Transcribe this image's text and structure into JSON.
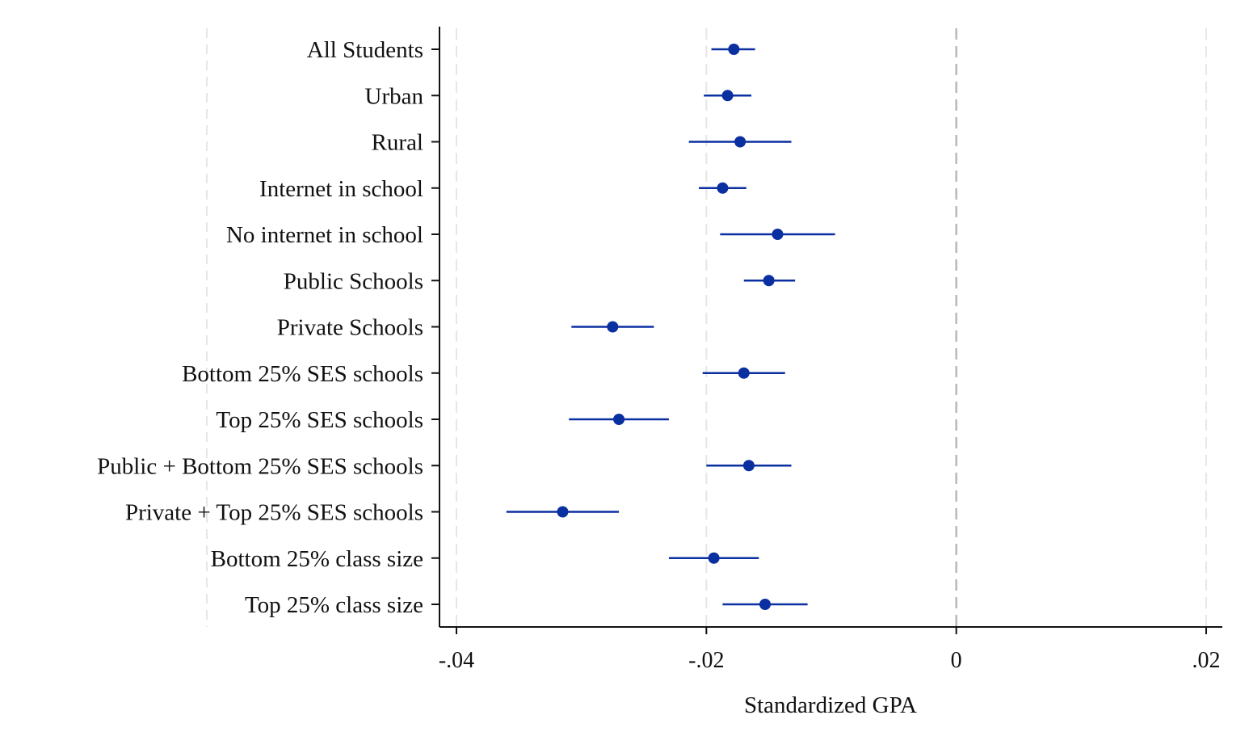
{
  "chart_data": {
    "type": "coefficient-plot",
    "orientation": "horizontal",
    "title": "",
    "xlabel": "Standardized GPA",
    "ylabel": "",
    "xlim": [
      -0.0413,
      0.0213
    ],
    "xticks": [
      -0.04,
      -0.02,
      0,
      0.02
    ],
    "xtick_labels": [
      "-.04",
      "-.02",
      "0",
      ".02"
    ],
    "grid": "vertical dashed lines at ticks",
    "reference_line": 0,
    "series": [
      {
        "name": "Standardized GPA effect",
        "color": "#0a2fa0",
        "points": [
          {
            "label": "All Students",
            "estimate": -0.0178,
            "ci_low": -0.0196,
            "ci_high": -0.0161
          },
          {
            "label": "Urban",
            "estimate": -0.0183,
            "ci_low": -0.0202,
            "ci_high": -0.0164
          },
          {
            "label": "Rural",
            "estimate": -0.0173,
            "ci_low": -0.0214,
            "ci_high": -0.0132
          },
          {
            "label": "Internet in school",
            "estimate": -0.0187,
            "ci_low": -0.0206,
            "ci_high": -0.0168
          },
          {
            "label": "No internet in school",
            "estimate": -0.0143,
            "ci_low": -0.0189,
            "ci_high": -0.0097
          },
          {
            "label": "Public Schools",
            "estimate": -0.015,
            "ci_low": -0.017,
            "ci_high": -0.0129
          },
          {
            "label": "Private Schools",
            "estimate": -0.0275,
            "ci_low": -0.0308,
            "ci_high": -0.0242
          },
          {
            "label": "Bottom 25% SES schools",
            "estimate": -0.017,
            "ci_low": -0.0203,
            "ci_high": -0.0137
          },
          {
            "label": "Top 25% SES schools",
            "estimate": -0.027,
            "ci_low": -0.031,
            "ci_high": -0.023
          },
          {
            "label": "Public + Bottom 25% SES schools",
            "estimate": -0.0166,
            "ci_low": -0.02,
            "ci_high": -0.0132
          },
          {
            "label": "Private + Top 25% SES schools",
            "estimate": -0.0315,
            "ci_low": -0.036,
            "ci_high": -0.027
          },
          {
            "label": "Bottom 25% class size",
            "estimate": -0.0194,
            "ci_low": -0.023,
            "ci_high": -0.0158
          },
          {
            "label": "Top 25% class size",
            "estimate": -0.0153,
            "ci_low": -0.0187,
            "ci_high": -0.0119
          }
        ]
      }
    ]
  }
}
